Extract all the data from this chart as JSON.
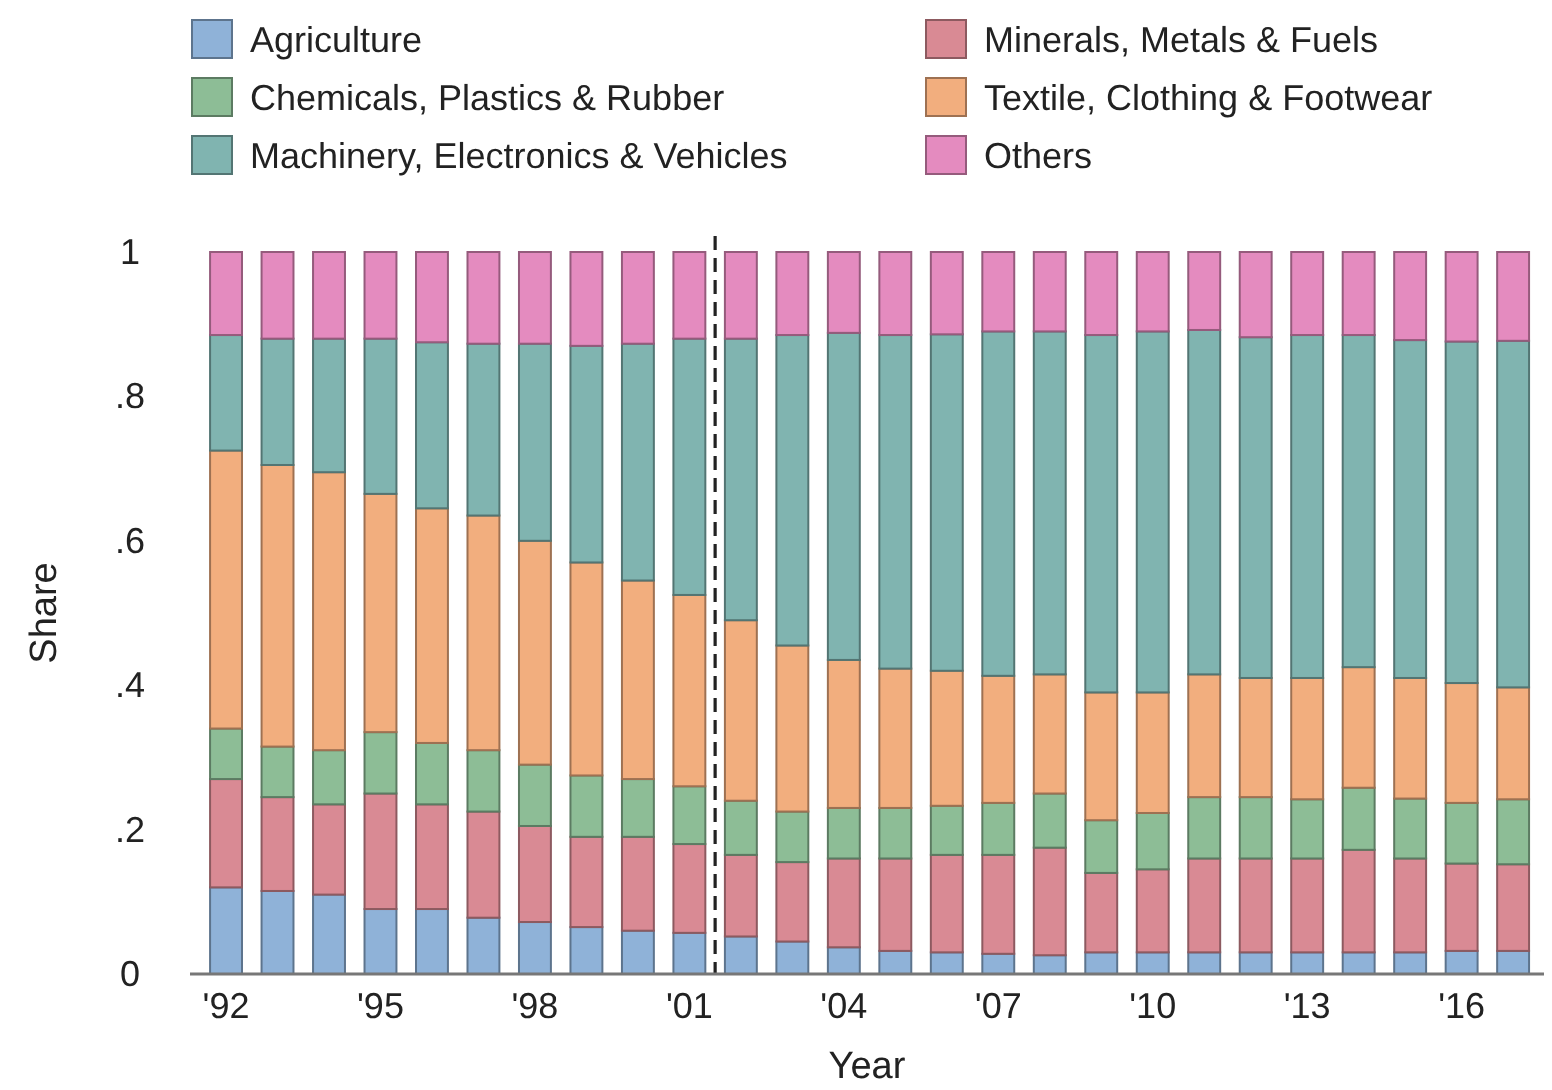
{
  "chart_data": {
    "type": "bar",
    "stacked": true,
    "xlabel": "Year",
    "ylabel": "Share",
    "x": [
      1992,
      1993,
      1994,
      1995,
      1996,
      1997,
      1998,
      1999,
      2000,
      2001,
      2002,
      2003,
      2004,
      2005,
      2006,
      2007,
      2008,
      2009,
      2010,
      2011,
      2012,
      2013,
      2014,
      2015,
      2016,
      2017
    ],
    "xlim": [
      1991.3,
      2017.6
    ],
    "xticks": [
      {
        "value": 1992,
        "label": "'92"
      },
      {
        "value": 1995,
        "label": "'95"
      },
      {
        "value": 1998,
        "label": "'98"
      },
      {
        "value": 2001,
        "label": "'01"
      },
      {
        "value": 2004,
        "label": "'04"
      },
      {
        "value": 2007,
        "label": "'07"
      },
      {
        "value": 2010,
        "label": "'10"
      },
      {
        "value": 2013,
        "label": "'13"
      },
      {
        "value": 2016,
        "label": "'16"
      }
    ],
    "ylim": [
      0,
      1
    ],
    "yticks": [
      0,
      {
        "value": 0.2,
        "label": ".2"
      },
      {
        "value": 0.4,
        "label": ".4"
      },
      {
        "value": 0.6,
        "label": ".6"
      },
      {
        "value": 0.8,
        "label": ".8"
      },
      1
    ],
    "grid": false,
    "legend": "top",
    "ref_lines": [
      {
        "axis": "x",
        "value": 2001.5,
        "line_style": "dashed",
        "color": "#222222"
      }
    ],
    "series": [
      {
        "name": "Agriculture",
        "color": "#8fb2d8",
        "values": [
          0.12,
          0.115,
          0.11,
          0.09,
          0.09,
          0.078,
          0.072,
          0.065,
          0.06,
          0.057,
          0.052,
          0.045,
          0.037,
          0.032,
          0.03,
          0.028,
          0.026,
          0.03,
          0.03,
          0.03,
          0.03,
          0.03,
          0.03,
          0.03,
          0.032,
          0.032
        ]
      },
      {
        "name": "Minerals, Metals & Fuels",
        "color": "#d98a94",
        "values": [
          0.15,
          0.13,
          0.125,
          0.16,
          0.145,
          0.147,
          0.133,
          0.125,
          0.13,
          0.123,
          0.113,
          0.11,
          0.123,
          0.128,
          0.135,
          0.137,
          0.149,
          0.11,
          0.115,
          0.13,
          0.13,
          0.13,
          0.142,
          0.13,
          0.121,
          0.12
        ]
      },
      {
        "name": "Chemicals, Plastics & Rubber",
        "color": "#8dbd96",
        "values": [
          0.07,
          0.07,
          0.075,
          0.085,
          0.085,
          0.085,
          0.085,
          0.085,
          0.08,
          0.08,
          0.075,
          0.07,
          0.07,
          0.07,
          0.068,
          0.072,
          0.075,
          0.073,
          0.078,
          0.085,
          0.085,
          0.082,
          0.086,
          0.083,
          0.084,
          0.09
        ]
      },
      {
        "name": "Textile, Clothing & Footwear",
        "color": "#f2ae7e",
        "values": [
          0.385,
          0.39,
          0.385,
          0.33,
          0.325,
          0.325,
          0.31,
          0.295,
          0.275,
          0.265,
          0.25,
          0.23,
          0.205,
          0.193,
          0.187,
          0.176,
          0.165,
          0.177,
          0.167,
          0.17,
          0.165,
          0.168,
          0.167,
          0.167,
          0.166,
          0.155
        ]
      },
      {
        "name": "Machinery, Electronics & Vehicles",
        "color": "#80b4b0",
        "values": [
          0.16,
          0.175,
          0.185,
          0.215,
          0.23,
          0.238,
          0.273,
          0.3,
          0.328,
          0.355,
          0.39,
          0.43,
          0.453,
          0.462,
          0.466,
          0.477,
          0.475,
          0.495,
          0.5,
          0.477,
          0.472,
          0.475,
          0.46,
          0.468,
          0.473,
          0.48
        ]
      },
      {
        "name": "Others",
        "color": "#e48bbf",
        "values": [
          0.115,
          0.12,
          0.12,
          0.12,
          0.125,
          0.127,
          0.127,
          0.13,
          0.127,
          0.12,
          0.12,
          0.115,
          0.112,
          0.115,
          0.114,
          0.11,
          0.11,
          0.115,
          0.11,
          0.108,
          0.118,
          0.115,
          0.115,
          0.122,
          0.124,
          0.123
        ]
      }
    ]
  }
}
